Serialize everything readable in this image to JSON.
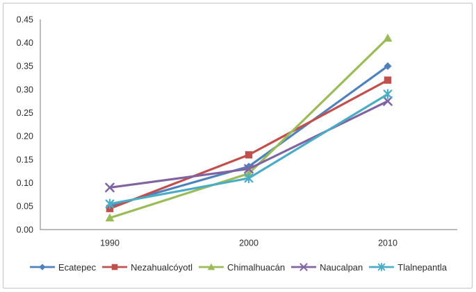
{
  "chart_data": {
    "type": "line",
    "title": "",
    "xlabel": "",
    "ylabel": "",
    "x_categories": [
      "1990",
      "2000",
      "2010"
    ],
    "series": [
      {
        "name": "Ecatepec",
        "color": "#4f81bd",
        "marker": "diamond",
        "values": [
          0.05,
          0.135,
          0.35
        ]
      },
      {
        "name": "Nezahualcóyotl",
        "color": "#c0504d",
        "marker": "square",
        "values": [
          0.045,
          0.16,
          0.32
        ]
      },
      {
        "name": "Chimalhuacán",
        "color": "#9bbb59",
        "marker": "triangle",
        "values": [
          0.025,
          0.12,
          0.41
        ]
      },
      {
        "name": "Naucalpan",
        "color": "#8064a2",
        "marker": "x",
        "values": [
          0.09,
          0.13,
          0.275
        ]
      },
      {
        "name": "Tlalnepantla",
        "color": "#4bacc6",
        "marker": "asterisk",
        "values": [
          0.055,
          0.11,
          0.29
        ]
      }
    ],
    "y_axis": {
      "min": 0,
      "max": 0.45,
      "step": 0.05,
      "tick_labels": [
        "0.00",
        "0.05",
        "0.10",
        "0.15",
        "0.20",
        "0.25",
        "0.30",
        "0.35",
        "0.40",
        "0.45"
      ]
    },
    "legend": {
      "position": "bottom",
      "entries": [
        "Ecatepec",
        "Nezahualcóyotl",
        "Chimalhuacán",
        "Naucalpan",
        "Tlalnepantla"
      ]
    },
    "grid": false,
    "colors": {
      "axis": "#8f8f8f",
      "text": "#2b2b2b",
      "border": "#c3c3c3",
      "background": "#ffffff"
    }
  }
}
